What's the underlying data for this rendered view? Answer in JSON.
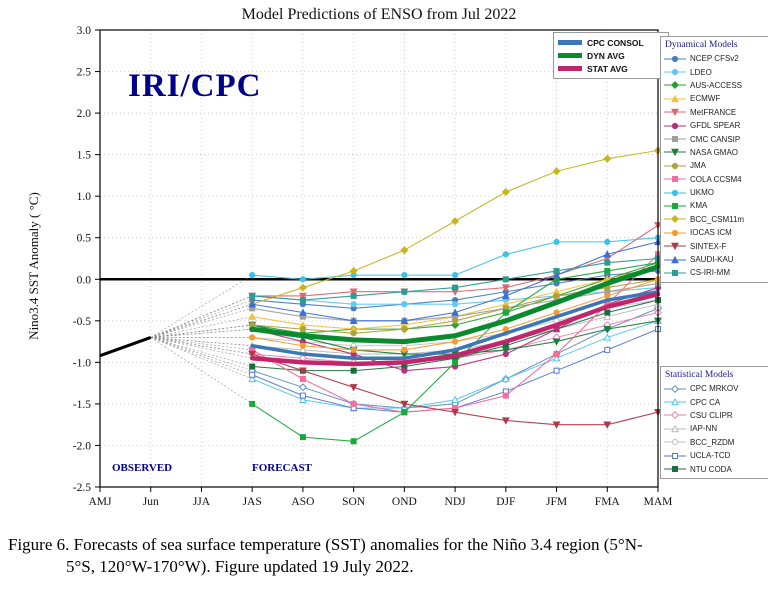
{
  "title": "Model Predictions of ENSO from Jul 2022",
  "watermark": "IRI/CPC",
  "ylabel": "Nino3.4 SST Anomaly ( °C)",
  "observed_label": "OBSERVED",
  "forecast_label": "FORECAST",
  "legend_dynamical_title": "Dynamical Models",
  "legend_statistical_title": "Statistical Models",
  "caption": {
    "line1": "Figure 6. Forecasts of sea surface temperature (SST) anomalies for the Niño 3.4 region (5°N-",
    "line2": "5°S, 120°W-170°W). Figure updated 19 July 2022."
  },
  "chart_data": {
    "type": "line",
    "title": "Model Predictions of ENSO from Jul 2022",
    "xlabel": "",
    "ylabel": "Nino3.4 SST Anomaly ( °C)",
    "ylim": [
      -2.5,
      3.0
    ],
    "ytick_step": 0.5,
    "grid": true,
    "x_categories": [
      "AMJ",
      "Jun",
      "JJA",
      "JAS",
      "ASO",
      "SON",
      "OND",
      "NDJ",
      "DJF",
      "JFM",
      "FMA",
      "MAM"
    ],
    "forecast_x": [
      "JAS",
      "ASO",
      "SON",
      "OND",
      "NDJ",
      "DJF",
      "JFM",
      "FMA",
      "MAM"
    ],
    "observed": {
      "x": [
        "AMJ",
        "Jun"
      ],
      "values": [
        -0.92,
        -0.7
      ],
      "color": "#000000"
    },
    "averages": [
      {
        "name": "CPC CONSOL",
        "color": "#3a78b5",
        "width": 3.5,
        "values": [
          -0.8,
          -0.9,
          -0.95,
          -0.95,
          -0.85,
          -0.65,
          -0.45,
          -0.25,
          -0.15
        ]
      },
      {
        "name": "DYN AVG",
        "color": "#0a8a2f",
        "width": 5,
        "values": [
          -0.6,
          -0.68,
          -0.73,
          -0.75,
          -0.68,
          -0.5,
          -0.28,
          -0.05,
          0.15
        ]
      },
      {
        "name": "STAT AVG",
        "color": "#c1266d",
        "width": 4.5,
        "values": [
          -0.95,
          -1.0,
          -1.02,
          -1.0,
          -0.92,
          -0.75,
          -0.55,
          -0.33,
          -0.18
        ]
      }
    ],
    "dynamical_models": [
      {
        "name": "NCEP CFSv2",
        "color": "#4a7ebb",
        "marker": "circle",
        "open": false,
        "values": [
          -0.25,
          -0.3,
          -0.35,
          -0.3,
          -0.25,
          -0.15,
          -0.05,
          0.05,
          0.1
        ]
      },
      {
        "name": "LDEO",
        "color": "#63c8f2",
        "marker": "circle",
        "open": false,
        "values": [
          -0.2,
          -0.25,
          -0.3,
          -0.3,
          -0.3,
          -0.25,
          -0.2,
          -0.15,
          -0.1
        ]
      },
      {
        "name": "AUS-ACCESS",
        "color": "#2ca02c",
        "marker": "diamond",
        "open": false,
        "values": [
          -0.55,
          -0.65,
          -0.6,
          -0.6,
          -0.55,
          -0.4,
          -0.2,
          0.0,
          0.2
        ]
      },
      {
        "name": "ECMWF",
        "color": "#f0c33c",
        "marker": "triangle-up",
        "open": false,
        "values": [
          -0.45,
          -0.55,
          -0.6,
          -0.55,
          -0.45,
          -0.3,
          -0.15,
          0.0,
          0.15
        ]
      },
      {
        "name": "MetFRANCE",
        "color": "#e0646e",
        "marker": "triangle-down",
        "open": false,
        "values": [
          -0.2,
          -0.2,
          -0.15,
          -0.15,
          -0.15,
          -0.1,
          0.05,
          0.25,
          0.65
        ]
      },
      {
        "name": "GFDL SPEAR",
        "color": "#b5317c",
        "marker": "circle",
        "open": false,
        "values": [
          -0.6,
          -0.75,
          -0.9,
          -1.1,
          -1.05,
          -0.9,
          -0.6,
          -0.3,
          -0.1
        ]
      },
      {
        "name": "CMC CANSIP",
        "color": "#9e9e9e",
        "marker": "square",
        "open": false,
        "values": [
          -0.35,
          -0.45,
          -0.5,
          -0.5,
          -0.45,
          -0.35,
          -0.25,
          -0.15,
          -0.05
        ]
      },
      {
        "name": "NASA GMAO",
        "color": "#1b7e3c",
        "marker": "triangle-down",
        "open": false,
        "values": [
          -0.55,
          -0.7,
          -0.85,
          -0.9,
          -0.9,
          -0.85,
          -0.75,
          -0.6,
          -0.5
        ]
      },
      {
        "name": "JMA",
        "color": "#b0a23a",
        "marker": "circle",
        "open": false,
        "values": [
          -0.55,
          -0.6,
          -0.65,
          -0.6,
          -0.5,
          -0.35,
          -0.2,
          -0.1,
          0.0
        ]
      },
      {
        "name": "COLA CCSM4",
        "color": "#f46d9b",
        "marker": "square",
        "open": false,
        "values": [
          -0.85,
          -1.2,
          -1.5,
          -1.6,
          -1.55,
          -1.4,
          -0.9,
          -0.3,
          0.3
        ]
      },
      {
        "name": "UKMO",
        "color": "#39c3e6",
        "marker": "circle",
        "open": false,
        "values": [
          0.05,
          0.0,
          0.05,
          0.05,
          0.05,
          0.3,
          0.45,
          0.45,
          0.5
        ]
      },
      {
        "name": "KMA",
        "color": "#19a83b",
        "marker": "square",
        "open": false,
        "values": [
          -1.5,
          -1.9,
          -1.95,
          -1.6,
          -1.0,
          -0.4,
          0.0,
          0.1,
          0.2
        ]
      },
      {
        "name": "BCC_CSM11m",
        "color": "#c8b41e",
        "marker": "diamond",
        "open": false,
        "values": [
          -0.3,
          -0.1,
          0.1,
          0.35,
          0.7,
          1.05,
          1.3,
          1.45,
          1.55
        ]
      },
      {
        "name": "IOCAS ICM",
        "color": "#f59c2f",
        "marker": "circle",
        "open": false,
        "values": [
          -0.7,
          -0.8,
          -0.85,
          -0.85,
          -0.75,
          -0.6,
          -0.4,
          -0.2,
          0.0
        ]
      },
      {
        "name": "SINTEX-F",
        "color": "#b03a48",
        "marker": "triangle-down",
        "open": false,
        "values": [
          -0.9,
          -1.1,
          -1.3,
          -1.5,
          -1.6,
          -1.7,
          -1.75,
          -1.75,
          -1.6
        ]
      },
      {
        "name": "SAUDI-KAU",
        "color": "#3b6fd4",
        "marker": "triangle-up",
        "open": false,
        "values": [
          -0.3,
          -0.4,
          -0.5,
          -0.5,
          -0.4,
          -0.2,
          0.05,
          0.3,
          0.45
        ]
      },
      {
        "name": "CS-IRI-MM",
        "color": "#2a9d8f",
        "marker": "square",
        "open": false,
        "values": [
          -0.2,
          -0.25,
          -0.2,
          -0.15,
          -0.1,
          0.0,
          0.1,
          0.2,
          0.25
        ]
      }
    ],
    "statistical_models": [
      {
        "name": "CPC MRKOV",
        "color": "#5b8ec4",
        "marker": "diamond",
        "open": true,
        "values": [
          -1.1,
          -1.3,
          -1.5,
          -1.55,
          -1.5,
          -1.2,
          -0.9,
          -0.6,
          -0.35
        ]
      },
      {
        "name": "CPC CA",
        "color": "#53c6e8",
        "marker": "triangle-up",
        "open": true,
        "values": [
          -1.2,
          -1.45,
          -1.55,
          -1.55,
          -1.45,
          -1.2,
          -0.95,
          -0.7,
          -0.5
        ]
      },
      {
        "name": "CSU CLIPR",
        "color": "#ef7fae",
        "marker": "diamond",
        "open": true,
        "values": [
          -0.9,
          -0.95,
          -1.0,
          -1.0,
          -0.95,
          -0.85,
          -0.7,
          -0.55,
          -0.4
        ]
      },
      {
        "name": "IAP-NN",
        "color": "#b9b9b9",
        "marker": "triangle-up",
        "open": true,
        "values": [
          -0.8,
          -0.85,
          -0.9,
          -0.9,
          -0.85,
          -0.75,
          -0.6,
          -0.45,
          -0.3
        ]
      },
      {
        "name": "BCC_RZDM",
        "color": "#c4c4c4",
        "marker": "circle",
        "open": true,
        "values": [
          -0.7,
          -0.75,
          -0.8,
          -0.8,
          -0.75,
          -0.65,
          -0.5,
          -0.35,
          -0.25
        ]
      },
      {
        "name": "UCLA-TCD",
        "color": "#5577cc",
        "marker": "square",
        "open": true,
        "values": [
          -1.15,
          -1.4,
          -1.55,
          -1.6,
          -1.55,
          -1.35,
          -1.1,
          -0.85,
          -0.6
        ]
      },
      {
        "name": "NTU CODA",
        "color": "#1b6e3a",
        "marker": "square",
        "open": false,
        "values": [
          -1.05,
          -1.1,
          -1.1,
          -1.05,
          -0.95,
          -0.8,
          -0.6,
          -0.4,
          -0.25
        ]
      }
    ]
  }
}
